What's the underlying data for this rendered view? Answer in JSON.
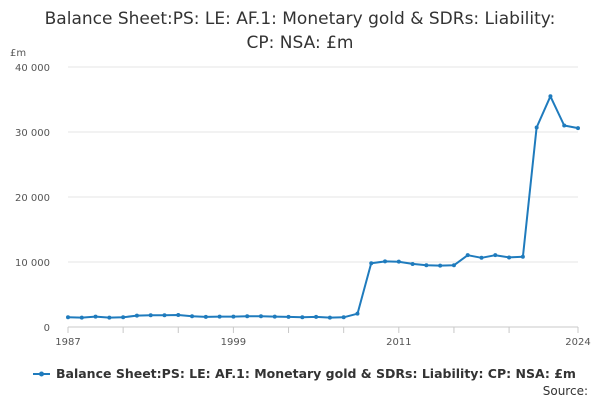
{
  "chart_data": {
    "type": "line",
    "title_lines": [
      "Balance Sheet:PS: LE: AF.1: Monetary gold & SDRs: Liability:",
      "CP: NSA: £m"
    ],
    "unit_label": "£m",
    "ylim": [
      0,
      40000
    ],
    "yticks": [
      0,
      10000,
      20000,
      30000,
      40000
    ],
    "ytick_labels": [
      "0",
      "10 000",
      "20 000",
      "30 000",
      "40 000"
    ],
    "xlim": [
      1987,
      2024
    ],
    "xtick_years": [
      1987,
      1991,
      1995,
      1999,
      2003,
      2007,
      2011,
      2015,
      2019,
      2024
    ],
    "xtick_labels": [
      {
        "year": 1987,
        "label": "1987"
      },
      {
        "year": 1999,
        "label": "1999"
      },
      {
        "year": 2011,
        "label": "2011"
      },
      {
        "year": 2024,
        "label": "2024"
      }
    ],
    "grid": true,
    "series": [
      {
        "name": "Balance Sheet:PS: LE: AF.1: Monetary gold & SDRs: Liability: CP: NSA: £m",
        "color": "#1f7bbd",
        "x": [
          1987,
          1988,
          1989,
          1990,
          1991,
          1992,
          1993,
          1994,
          1995,
          1996,
          1997,
          1998,
          1999,
          2000,
          2001,
          2002,
          2003,
          2004,
          2005,
          2006,
          2007,
          2008,
          2009,
          2010,
          2011,
          2012,
          2013,
          2014,
          2015,
          2016,
          2017,
          2018,
          2019,
          2020,
          2021,
          2022,
          2023,
          2024
        ],
        "values": [
          1500,
          1450,
          1600,
          1450,
          1500,
          1750,
          1800,
          1800,
          1850,
          1650,
          1550,
          1600,
          1600,
          1650,
          1650,
          1600,
          1550,
          1500,
          1550,
          1450,
          1500,
          2050,
          9800,
          10100,
          10050,
          9700,
          9500,
          9450,
          9500,
          11050,
          10650,
          11050,
          10700,
          10800,
          30700,
          35500,
          31000,
          30600
        ]
      }
    ],
    "legend_position": "bottom",
    "source_label": "Source:"
  }
}
